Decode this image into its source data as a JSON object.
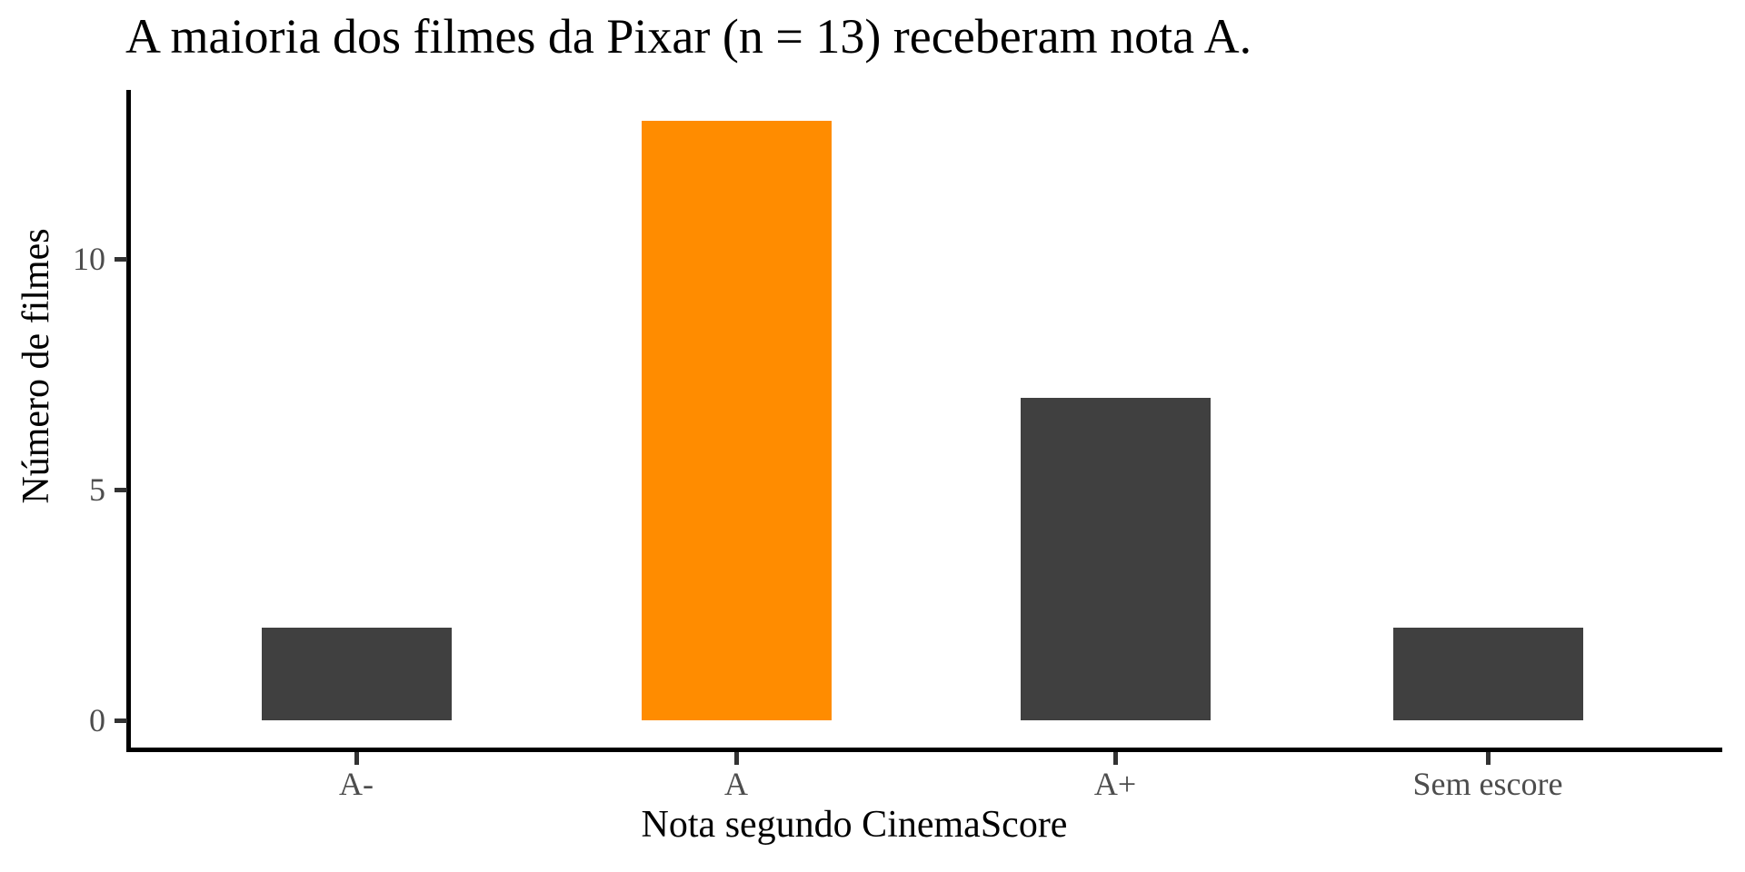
{
  "chart_data": {
    "type": "bar",
    "title": "A maioria dos filmes da Pixar (n = 13) receberam nota A.",
    "xlabel": "Nota segundo CinemaScore",
    "ylabel": "Número de filmes",
    "categories": [
      "A-",
      "A",
      "A+",
      "Sem escore"
    ],
    "values": [
      2,
      13,
      7,
      2
    ],
    "y_ticks": [
      0,
      5,
      10
    ],
    "ylim": [
      0,
      13.65
    ],
    "grid": false,
    "legend": "none",
    "highlight_category": "A",
    "bar_colors": [
      "#404040",
      "#FF8C00",
      "#404040",
      "#404040"
    ],
    "colors": {
      "bar_default": "#404040",
      "bar_highlight": "#FF8C00",
      "axis_line": "#000000",
      "tick_mark": "#333333",
      "tick_label": "#4d4d4d",
      "axis_title": "#000000",
      "title": "#000000",
      "background": "#ffffff"
    }
  }
}
